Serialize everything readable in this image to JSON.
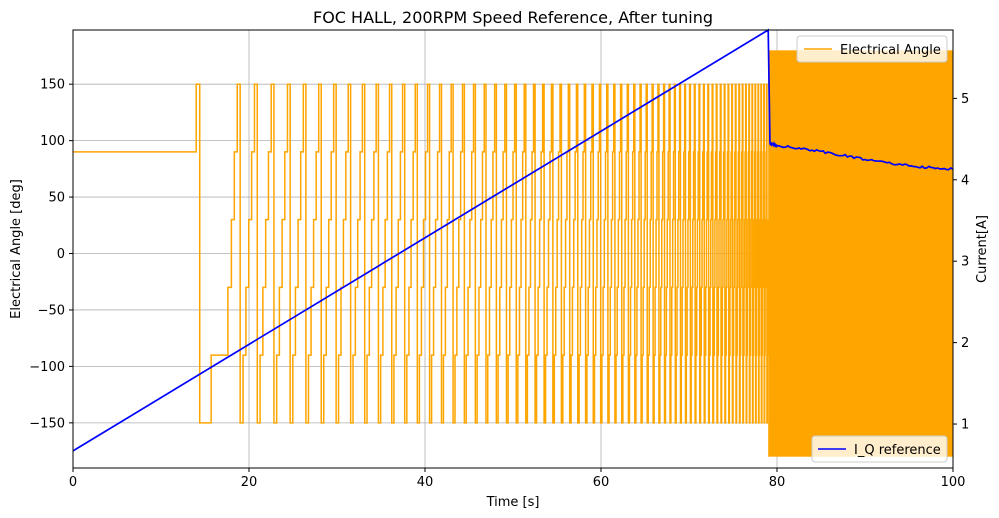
{
  "chart_data": {
    "type": "line",
    "title": "FOC HALL, 200RPM Speed Reference, After tuning",
    "xlabel": "Time [s]",
    "ylabel_left": "Electrical Angle [deg]",
    "ylabel_right": "Current[A]",
    "xlim": [
      0,
      100
    ],
    "ylim_left": [
      -190,
      198
    ],
    "ylim_right": [
      0.46,
      5.84
    ],
    "x_ticks": [
      0,
      20,
      40,
      60,
      80,
      100
    ],
    "y_left_ticks": [
      -150,
      -100,
      -50,
      0,
      50,
      100,
      150
    ],
    "y_right_ticks": [
      1,
      2,
      3,
      4,
      5
    ],
    "grid": true,
    "legends": [
      {
        "label": "Electrical Angle",
        "placement": "upper-right",
        "color": "#FFA500"
      },
      {
        "label": "I_Q reference",
        "placement": "lower-right",
        "color": "#0000FF"
      }
    ],
    "series": [
      {
        "name": "Electrical Angle",
        "axis": "left",
        "color": "#FFA500",
        "piecewise_steps": [
          [
            0,
            90
          ],
          [
            14.0,
            150
          ],
          [
            14.4,
            -150
          ],
          [
            15.7,
            -90
          ],
          [
            17.6,
            -30
          ],
          [
            18.0,
            30
          ]
        ],
        "sequence_values": [
          30,
          90,
          150,
          -150,
          -90,
          -30
        ],
        "oscillation_start_s": 17.9,
        "initial_period_s": 2.0,
        "final_period_s": 0.3,
        "ramp_end_s": 79.0,
        "post_ramp_range": [
          -180,
          180
        ]
      },
      {
        "name": "I_Q reference",
        "axis": "right",
        "color": "#0000FF",
        "points": [
          [
            0,
            0.67
          ],
          [
            79.0,
            5.84
          ],
          [
            79.2,
            4.45
          ],
          [
            80,
            4.42
          ],
          [
            85,
            4.35
          ],
          [
            90,
            4.25
          ],
          [
            95,
            4.17
          ],
          [
            100,
            4.13
          ]
        ]
      }
    ]
  }
}
